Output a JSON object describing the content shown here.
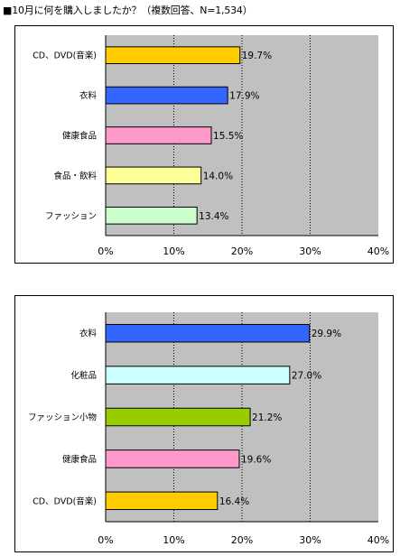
{
  "title": "■10月に何を購入しましたか？（複数回答、N=1,534）",
  "colors": {
    "plot_bg": "#c0c0c0",
    "grid": "#000000"
  },
  "chart_data": [
    {
      "type": "bar",
      "orientation": "horizontal",
      "categories": [
        "CD、DVD(音楽)",
        "衣料",
        "健康食品",
        "食品・飲料",
        "ファッション"
      ],
      "values": [
        19.7,
        17.9,
        15.5,
        14.0,
        13.4
      ],
      "value_labels": [
        "19.7%",
        "17.9%",
        "15.5%",
        "14.0%",
        "13.4%"
      ],
      "colors": [
        "#ffcc00",
        "#3366ff",
        "#ff99cc",
        "#ffff99",
        "#ccffcc"
      ],
      "xlim": [
        0,
        40
      ],
      "x_ticks": [
        "0%",
        "10%",
        "20%",
        "30%",
        "40%"
      ],
      "x_tick_values": [
        0,
        10,
        20,
        30,
        40
      ],
      "grid": "vertical dotted"
    },
    {
      "type": "bar",
      "orientation": "horizontal",
      "categories": [
        "衣料",
        "化粧品",
        "ファッション小物",
        "健康食品",
        "CD、DVD(音楽)"
      ],
      "values": [
        29.9,
        27.0,
        21.2,
        19.6,
        16.4
      ],
      "value_labels": [
        "29.9%",
        "27.0%",
        "21.2%",
        "19.6%",
        "16.4%"
      ],
      "colors": [
        "#3366ff",
        "#ccffff",
        "#99cc00",
        "#ff99cc",
        "#ffcc00"
      ],
      "xlim": [
        0,
        40
      ],
      "x_ticks": [
        "0%",
        "10%",
        "20%",
        "30%",
        "40%"
      ],
      "x_tick_values": [
        0,
        10,
        20,
        30,
        40
      ],
      "grid": "vertical dotted"
    }
  ]
}
